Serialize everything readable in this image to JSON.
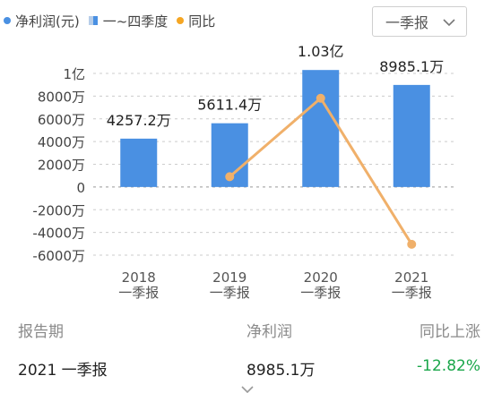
{
  "legend": [
    {
      "label": "净利润(元)",
      "color": "#4a90e2",
      "kind": "dot"
    },
    {
      "label": "一~四季度",
      "color": "#4a90e2",
      "kind": "bar"
    },
    {
      "label": "同比",
      "color": "#f5a623",
      "kind": "dot"
    }
  ],
  "period_select": {
    "value": "一季报",
    "icon": "chevron-down-icon"
  },
  "colors": {
    "bar": "#4a90e2",
    "line": "#f0b06a",
    "grid": "#cccccc",
    "positive": "#1aa64a"
  },
  "chart_data": {
    "type": "bar",
    "categories": [
      "2018\n一季报",
      "2019\n一季报",
      "2020\n一季报",
      "2021\n一季报"
    ],
    "category_lines": [
      [
        "2018",
        "一季报"
      ],
      [
        "2019",
        "一季报"
      ],
      [
        "2020",
        "一季报"
      ],
      [
        "2021",
        "一季报"
      ]
    ],
    "series": [
      {
        "name": "净利润(元)",
        "type": "bar",
        "values": [
          42572000,
          56114000,
          103000000,
          89851000
        ],
        "labels": [
          "4257.2万",
          "5611.4万",
          "1.03亿",
          "8985.1万"
        ]
      },
      {
        "name": "同比",
        "type": "line",
        "values": [
          null,
          31.8,
          83.6,
          -12.82
        ]
      }
    ],
    "y_ticks": [
      {
        "value": 100000000,
        "label": "1亿"
      },
      {
        "value": 80000000,
        "label": "8000万"
      },
      {
        "value": 60000000,
        "label": "6000万"
      },
      {
        "value": 40000000,
        "label": "4000万"
      },
      {
        "value": 20000000,
        "label": "2000万"
      },
      {
        "value": 0,
        "label": "0"
      },
      {
        "value": -20000000,
        "label": "-2000万"
      },
      {
        "value": -40000000,
        "label": "-4000万"
      },
      {
        "value": -60000000,
        "label": "-6000万"
      }
    ],
    "ylim": [
      -60000000,
      100000000
    ],
    "y2lim": [
      -20,
      100
    ],
    "grid": true,
    "legend_position": "top-left"
  },
  "summary": {
    "headers": {
      "period": "报告期",
      "profit": "净利润",
      "growth": "同比上涨"
    },
    "row": {
      "period": "2021 一季报",
      "profit": "8985.1万",
      "growth": "-12.82%"
    }
  },
  "bottom_icon": "chevron-down-icon"
}
